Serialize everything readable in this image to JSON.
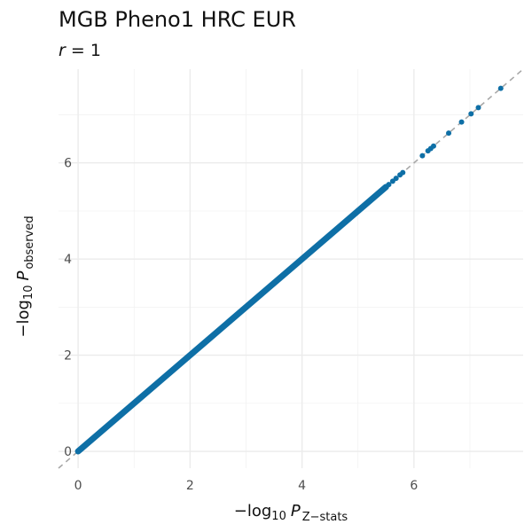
{
  "chart_data": {
    "type": "scatter",
    "title": "MGB Pheno1 HRC EUR",
    "subtitle_var": "r",
    "subtitle_val": "= 1",
    "xlabel": {
      "prefix": "−log",
      "base": "10",
      "var": "P",
      "subscript": "Z−stats"
    },
    "ylabel": {
      "prefix": "−log",
      "base": "10",
      "var": "P",
      "subscript": "observed"
    },
    "xlim": [
      -0.35,
      7.95
    ],
    "ylim": [
      -0.35,
      7.95
    ],
    "x_ticks": [
      0,
      2,
      4,
      6
    ],
    "y_ticks": [
      0,
      2,
      4,
      6
    ],
    "grid": true,
    "reference_line": "y = x (dashed)",
    "point_color": "#0e6fa6",
    "dense_range": [
      0,
      5.5
    ],
    "sparse_points": [
      [
        5.55,
        5.55
      ],
      [
        5.62,
        5.62
      ],
      [
        5.68,
        5.68
      ],
      [
        5.75,
        5.75
      ],
      [
        5.8,
        5.8
      ],
      [
        6.15,
        6.15
      ],
      [
        6.25,
        6.25
      ],
      [
        6.3,
        6.3
      ],
      [
        6.35,
        6.35
      ],
      [
        6.62,
        6.62
      ],
      [
        6.85,
        6.85
      ],
      [
        7.02,
        7.02
      ],
      [
        7.15,
        7.15
      ],
      [
        7.55,
        7.55
      ]
    ]
  }
}
